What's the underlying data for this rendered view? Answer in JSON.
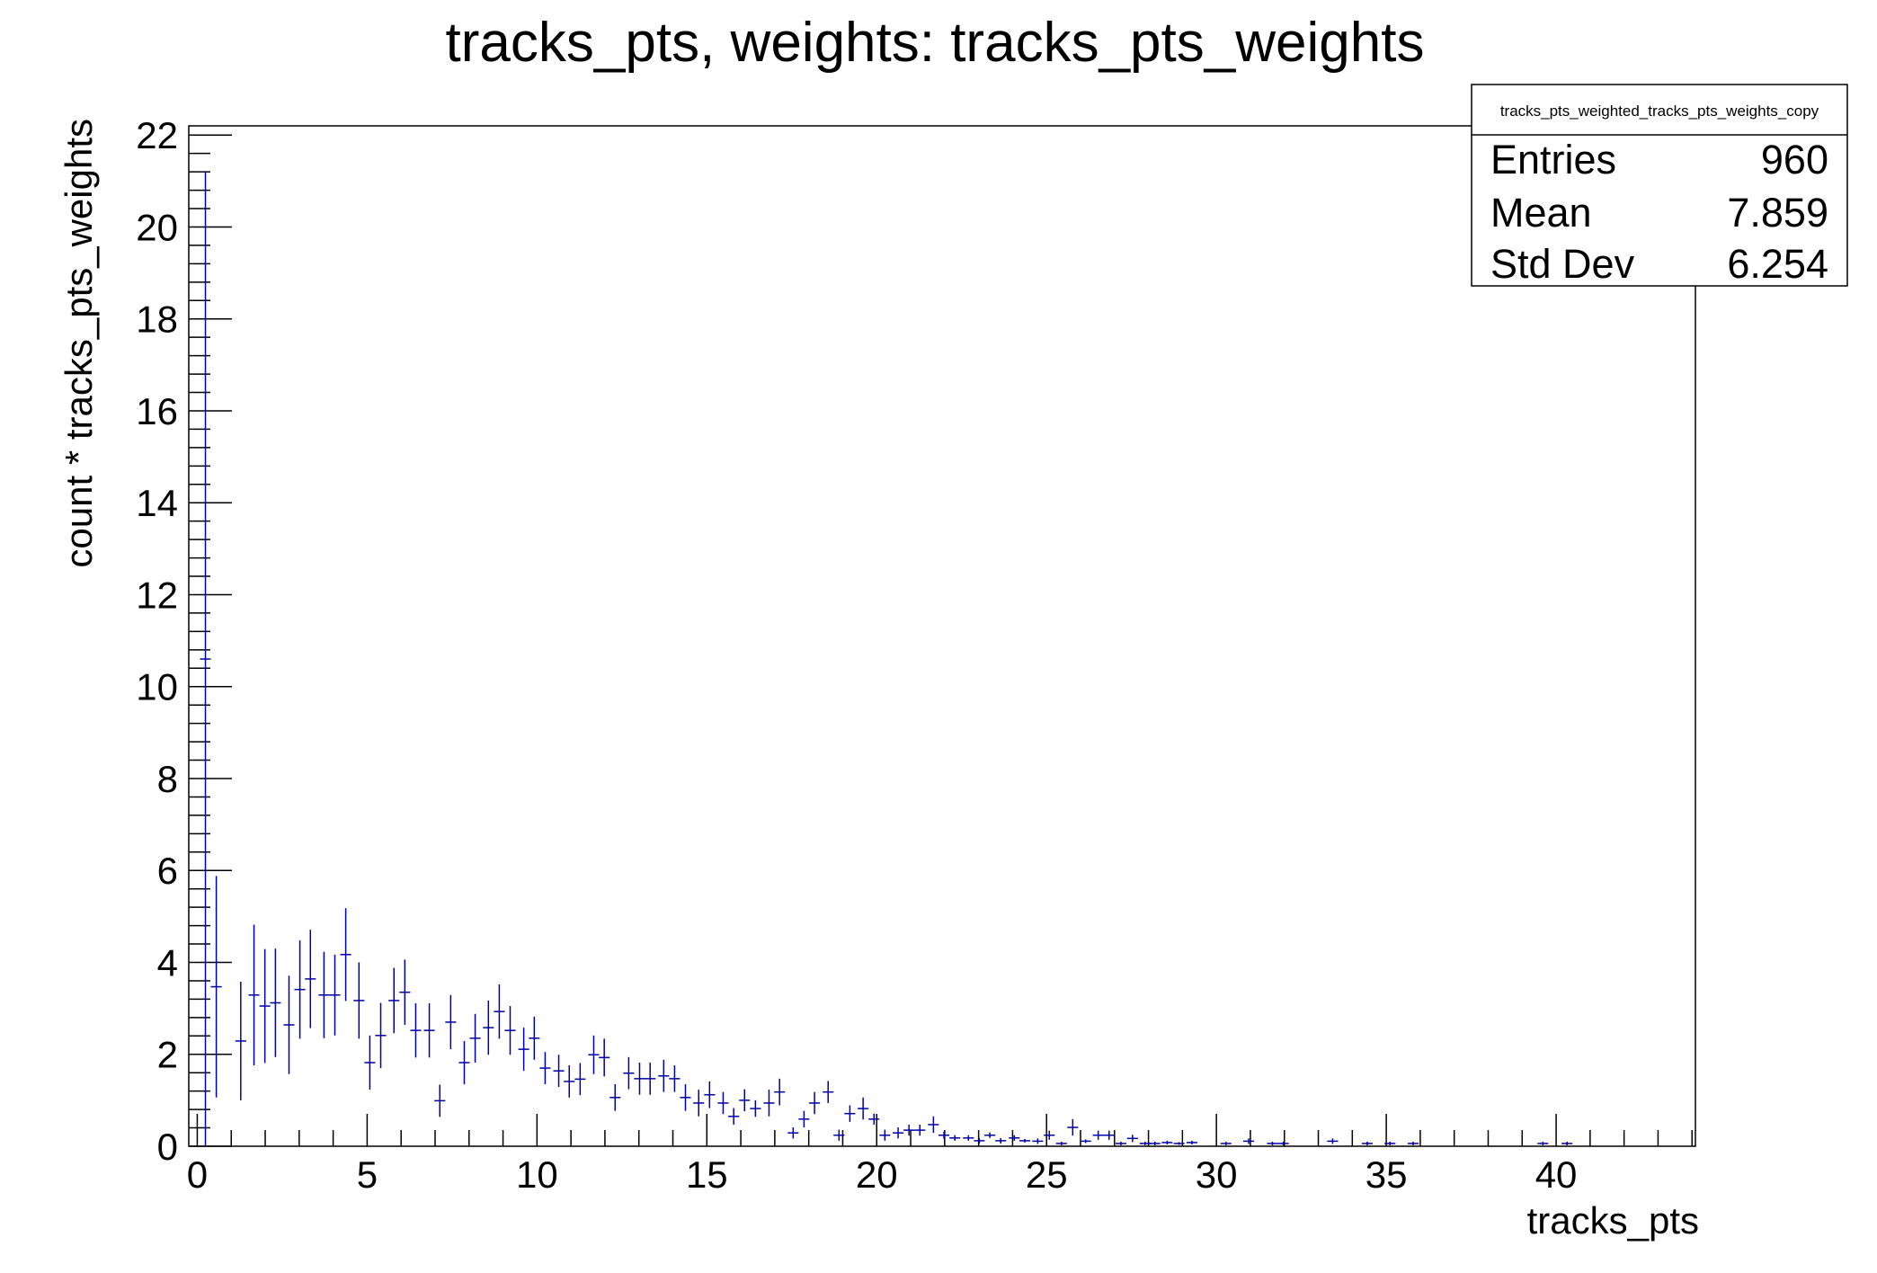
{
  "chart_data": {
    "type": "scatter",
    "style": "histogram with error bars",
    "title": "tracks_pts, weights: tracks_pts_weights",
    "xlabel": "tracks_pts",
    "ylabel": "count * tracks_pts_weights",
    "xlim": [
      -0.25,
      44.1
    ],
    "ylim": [
      0,
      22.2
    ],
    "xticks": [
      0,
      5,
      10,
      15,
      20,
      25,
      30,
      35,
      40
    ],
    "yticks": [
      0,
      2,
      4,
      6,
      8,
      10,
      12,
      14,
      16,
      18,
      20,
      22
    ],
    "grid": false,
    "marker_color": "#0000aa",
    "bin_halfwidth": 0.16,
    "points": [
      {
        "x": 0.24,
        "y": 10.6,
        "err": 10.6
      },
      {
        "x": 0.56,
        "y": 3.47,
        "err": 2.41
      },
      {
        "x": 1.28,
        "y": 2.29,
        "err": 1.29
      },
      {
        "x": 1.67,
        "y": 3.29,
        "err": 1.53
      },
      {
        "x": 1.99,
        "y": 3.05,
        "err": 1.24
      },
      {
        "x": 2.3,
        "y": 3.12,
        "err": 1.18
      },
      {
        "x": 2.7,
        "y": 2.64,
        "err": 1.07
      },
      {
        "x": 3.02,
        "y": 3.41,
        "err": 1.07
      },
      {
        "x": 3.33,
        "y": 3.64,
        "err": 1.07
      },
      {
        "x": 3.73,
        "y": 3.29,
        "err": 0.94
      },
      {
        "x": 4.05,
        "y": 3.29,
        "err": 0.88
      },
      {
        "x": 4.37,
        "y": 4.17,
        "err": 1.01
      },
      {
        "x": 4.76,
        "y": 3.17,
        "err": 0.83
      },
      {
        "x": 5.08,
        "y": 1.82,
        "err": 0.59
      },
      {
        "x": 5.4,
        "y": 2.41,
        "err": 0.71
      },
      {
        "x": 5.79,
        "y": 3.17,
        "err": 0.71
      },
      {
        "x": 6.11,
        "y": 3.35,
        "err": 0.71
      },
      {
        "x": 6.43,
        "y": 2.52,
        "err": 0.59
      },
      {
        "x": 6.83,
        "y": 2.52,
        "err": 0.59
      },
      {
        "x": 7.14,
        "y": 0.99,
        "err": 0.35
      },
      {
        "x": 7.46,
        "y": 2.7,
        "err": 0.59
      },
      {
        "x": 7.86,
        "y": 1.82,
        "err": 0.47
      },
      {
        "x": 8.18,
        "y": 2.35,
        "err": 0.53
      },
      {
        "x": 8.57,
        "y": 2.58,
        "err": 0.59
      },
      {
        "x": 8.89,
        "y": 2.93,
        "err": 0.59
      },
      {
        "x": 9.21,
        "y": 2.52,
        "err": 0.53
      },
      {
        "x": 9.61,
        "y": 2.11,
        "err": 0.47
      },
      {
        "x": 9.92,
        "y": 2.35,
        "err": 0.47
      },
      {
        "x": 10.24,
        "y": 1.7,
        "err": 0.35
      },
      {
        "x": 10.64,
        "y": 1.64,
        "err": 0.35
      },
      {
        "x": 10.95,
        "y": 1.41,
        "err": 0.35
      },
      {
        "x": 11.27,
        "y": 1.46,
        "err": 0.35
      },
      {
        "x": 11.67,
        "y": 1.99,
        "err": 0.42
      },
      {
        "x": 11.98,
        "y": 1.93,
        "err": 0.41
      },
      {
        "x": 12.3,
        "y": 1.06,
        "err": 0.29
      },
      {
        "x": 12.7,
        "y": 1.59,
        "err": 0.35
      },
      {
        "x": 13.02,
        "y": 1.47,
        "err": 0.35
      },
      {
        "x": 13.33,
        "y": 1.47,
        "err": 0.35
      },
      {
        "x": 13.73,
        "y": 1.53,
        "err": 0.35
      },
      {
        "x": 14.05,
        "y": 1.47,
        "err": 0.29
      },
      {
        "x": 14.37,
        "y": 1.06,
        "err": 0.29
      },
      {
        "x": 14.76,
        "y": 0.94,
        "err": 0.29
      },
      {
        "x": 15.08,
        "y": 1.12,
        "err": 0.29
      },
      {
        "x": 15.48,
        "y": 0.94,
        "err": 0.24
      },
      {
        "x": 15.79,
        "y": 0.65,
        "err": 0.18
      },
      {
        "x": 16.11,
        "y": 1.0,
        "err": 0.24
      },
      {
        "x": 16.43,
        "y": 0.82,
        "err": 0.18
      },
      {
        "x": 16.83,
        "y": 0.94,
        "err": 0.29
      },
      {
        "x": 17.14,
        "y": 1.18,
        "err": 0.29
      },
      {
        "x": 17.54,
        "y": 0.29,
        "err": 0.12
      },
      {
        "x": 17.86,
        "y": 0.59,
        "err": 0.18
      },
      {
        "x": 18.17,
        "y": 0.94,
        "err": 0.24
      },
      {
        "x": 18.57,
        "y": 1.18,
        "err": 0.24
      },
      {
        "x": 18.89,
        "y": 0.24,
        "err": 0.12
      },
      {
        "x": 19.21,
        "y": 0.71,
        "err": 0.18
      },
      {
        "x": 19.6,
        "y": 0.82,
        "err": 0.24
      },
      {
        "x": 19.92,
        "y": 0.59,
        "err": 0.12
      },
      {
        "x": 20.24,
        "y": 0.24,
        "err": 0.12
      },
      {
        "x": 20.63,
        "y": 0.29,
        "err": 0.12
      },
      {
        "x": 20.95,
        "y": 0.35,
        "err": 0.12
      },
      {
        "x": 21.27,
        "y": 0.35,
        "err": 0.12
      },
      {
        "x": 21.67,
        "y": 0.47,
        "err": 0.18
      },
      {
        "x": 21.98,
        "y": 0.24,
        "err": 0.08
      },
      {
        "x": 22.3,
        "y": 0.18,
        "err": 0.06
      },
      {
        "x": 22.7,
        "y": 0.18,
        "err": 0.06
      },
      {
        "x": 23.02,
        "y": 0.12,
        "err": 0.06
      },
      {
        "x": 23.33,
        "y": 0.24,
        "err": 0.06
      },
      {
        "x": 23.65,
        "y": 0.12,
        "err": 0.06
      },
      {
        "x": 24.05,
        "y": 0.18,
        "err": 0.06
      },
      {
        "x": 24.36,
        "y": 0.12,
        "err": 0.04
      },
      {
        "x": 24.74,
        "y": 0.11,
        "err": 0.06
      },
      {
        "x": 25.08,
        "y": 0.24,
        "err": 0.1
      },
      {
        "x": 25.44,
        "y": 0.06,
        "err": 0.04
      },
      {
        "x": 25.77,
        "y": 0.41,
        "err": 0.18
      },
      {
        "x": 26.15,
        "y": 0.11,
        "err": 0.04
      },
      {
        "x": 26.52,
        "y": 0.24,
        "err": 0.1
      },
      {
        "x": 26.84,
        "y": 0.24,
        "err": 0.1
      },
      {
        "x": 27.19,
        "y": 0.06,
        "err": 0.04
      },
      {
        "x": 27.53,
        "y": 0.17,
        "err": 0.08
      },
      {
        "x": 27.9,
        "y": 0.06,
        "err": 0.04
      },
      {
        "x": 28.19,
        "y": 0.06,
        "err": 0.04
      },
      {
        "x": 28.55,
        "y": 0.08,
        "err": 0.04
      },
      {
        "x": 28.9,
        "y": 0.06,
        "err": 0.03
      },
      {
        "x": 29.28,
        "y": 0.08,
        "err": 0.04
      },
      {
        "x": 30.28,
        "y": 0.06,
        "err": 0.04
      },
      {
        "x": 30.95,
        "y": 0.11,
        "err": 0.06
      },
      {
        "x": 31.65,
        "y": 0.06,
        "err": 0.04
      },
      {
        "x": 31.97,
        "y": 0.06,
        "err": 0.04
      },
      {
        "x": 33.42,
        "y": 0.11,
        "err": 0.06
      },
      {
        "x": 34.44,
        "y": 0.06,
        "err": 0.04
      },
      {
        "x": 35.11,
        "y": 0.06,
        "err": 0.04
      },
      {
        "x": 35.79,
        "y": 0.06,
        "err": 0.04
      },
      {
        "x": 39.61,
        "y": 0.06,
        "err": 0.04
      },
      {
        "x": 40.32,
        "y": 0.06,
        "err": 0.04
      }
    ],
    "stats_box": {
      "name": "tracks_pts_weighted_tracks_pts_weights_copy",
      "rows": [
        {
          "label": "Entries",
          "value": "960"
        },
        {
          "label": "Mean",
          "value": "7.859"
        },
        {
          "label": "Std Dev",
          "value": "6.254"
        }
      ],
      "placement": "top-right"
    }
  }
}
